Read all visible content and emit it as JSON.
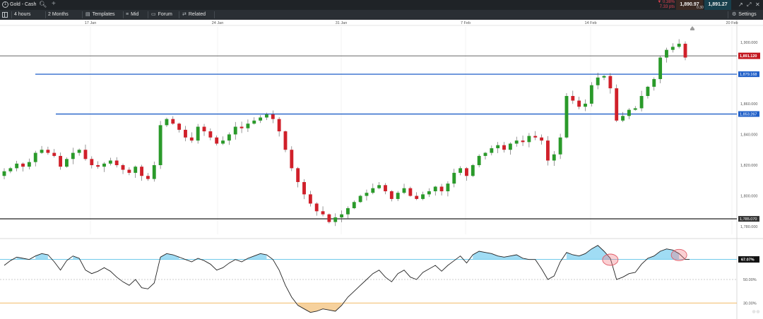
{
  "topbar": {
    "instrument_icon": "info-circle-icon",
    "instrument": "Gold - Cash",
    "change_pct": "▼ 0.38%",
    "change_pts": "7.33 pts",
    "sell": "1,890.97",
    "spread": "0.30",
    "buy": "1,891.27"
  },
  "toolbar": {
    "timeframe": "4 hours",
    "range": "2 Months",
    "templates": "Templates",
    "mid": "Mid",
    "forum": "Forum",
    "related": "Related",
    "settings": "Settings"
  },
  "chart_data": {
    "type": "candlestick",
    "x_tick_labels": [
      "17 Jan",
      "24 Jan",
      "31 Jan",
      "7 Feb",
      "14 Feb",
      "20 Feb"
    ],
    "y_tick_labels": [
      "1,900.000",
      "1,880.000",
      "1,860.000",
      "1,840.000",
      "1,820.000",
      "1,800.000",
      "1,780.000"
    ],
    "ylim": [
      1775,
      1910
    ],
    "current_price_label": "1,891.120",
    "current_price": 1891.12,
    "levels": [
      {
        "label": "1,879.168",
        "value": 1879.17,
        "color": "#1f5fc8",
        "style": "horizontal-line"
      },
      {
        "label": "1,853.267",
        "value": 1853.27,
        "color": "#1f5fc8",
        "style": "horizontal-line"
      },
      {
        "label": "1,785.070",
        "value": 1785.07,
        "color": "#333333",
        "style": "horizontal-line"
      }
    ],
    "closes": [
      1816,
      1818,
      1821,
      1819,
      1822,
      1828,
      1830,
      1828,
      1826,
      1819,
      1824,
      1828,
      1830,
      1824,
      1820,
      1819,
      1821,
      1823,
      1820,
      1817,
      1815,
      1819,
      1813,
      1811,
      1820,
      1846,
      1850,
      1847,
      1843,
      1838,
      1836,
      1845,
      1842,
      1838,
      1834,
      1836,
      1840,
      1845,
      1844,
      1847,
      1849,
      1851,
      1853,
      1850,
      1842,
      1830,
      1818,
      1809,
      1801,
      1795,
      1790,
      1788,
      1783,
      1786,
      1788,
      1792,
      1796,
      1800,
      1802,
      1805,
      1807,
      1803,
      1798,
      1802,
      1805,
      1800,
      1798,
      1801,
      1803,
      1806,
      1803,
      1808,
      1815,
      1818,
      1813,
      1820,
      1826,
      1828,
      1831,
      1833,
      1830,
      1834,
      1836,
      1835,
      1839,
      1838,
      1836,
      1823,
      1827,
      1838,
      1865,
      1862,
      1858,
      1860,
      1872,
      1877,
      1878,
      1870,
      1849,
      1852,
      1856,
      1857,
      1865,
      1871,
      1876,
      1890,
      1895,
      1897,
      1899,
      1890
    ],
    "candle_up_color": "#2a9a2a",
    "candle_down_color": "#d0202a",
    "indicator": {
      "y_tick_labels": [
        "50.00%",
        "30.00%"
      ],
      "current_label": "67.07%",
      "upper_level": 67.07,
      "mid_level": 50,
      "lower_level": 30,
      "upper_line_color": "#5bc3e8",
      "mid_line_color": "#cccccc",
      "lower_line_color": "#f0b050",
      "values": [
        62,
        66,
        69,
        68,
        67,
        70,
        72,
        71,
        65,
        58,
        66,
        70,
        68,
        58,
        55,
        57,
        60,
        57,
        52,
        48,
        45,
        50,
        43,
        42,
        47,
        69,
        72,
        71,
        69,
        67,
        65,
        68,
        66,
        63,
        58,
        60,
        64,
        67,
        65,
        68,
        70,
        72,
        71,
        67,
        58,
        45,
        35,
        28,
        25,
        22,
        23,
        25,
        24,
        23,
        28,
        35,
        40,
        45,
        50,
        55,
        58,
        52,
        48,
        55,
        58,
        52,
        50,
        56,
        59,
        62,
        57,
        62,
        66,
        70,
        64,
        71,
        74,
        73,
        72,
        70,
        69,
        70,
        71,
        68,
        67,
        67,
        59,
        50,
        53,
        65,
        73,
        71,
        70,
        72,
        76,
        79,
        74,
        68,
        50,
        52,
        55,
        56,
        63,
        68,
        70,
        74,
        76,
        75,
        72,
        67
      ],
      "highlight_circles": [
        97,
        108
      ]
    }
  }
}
